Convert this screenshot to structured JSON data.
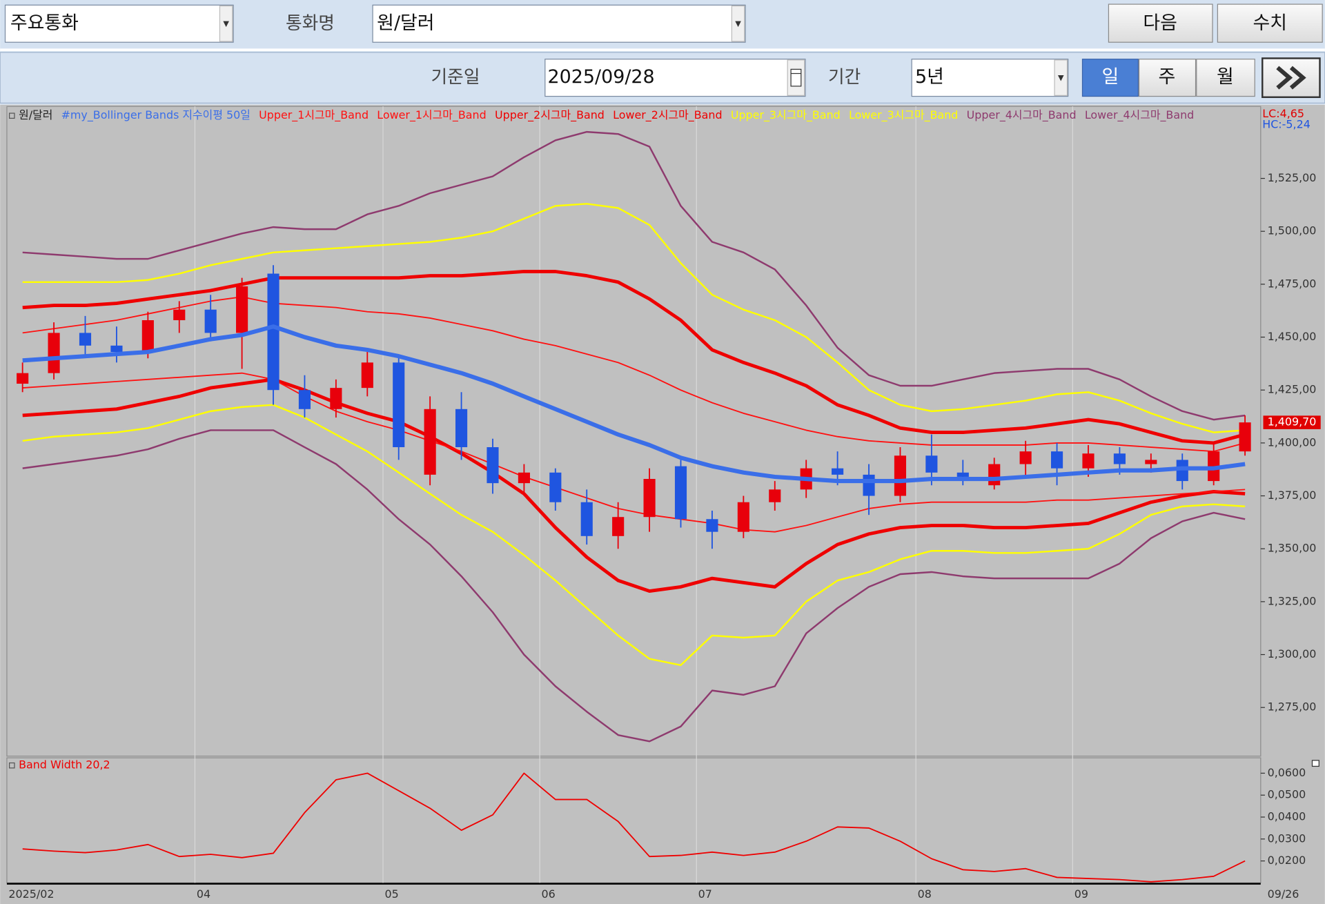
{
  "toolbar": {
    "currency_group": "주요통화",
    "currency_label": "통화명",
    "currency": "원/달러",
    "next_button": "다음",
    "value_button": "수치",
    "date_label": "기준일",
    "date": "2025/09/28",
    "period_label": "기간",
    "period": "5년",
    "day": "일",
    "week": "주",
    "month": "월"
  },
  "chart_data": {
    "type": "candlestick",
    "categories": [
      "2025/02",
      null,
      null,
      null,
      null,
      null,
      "04",
      null,
      null,
      null,
      null,
      null,
      "05",
      null,
      null,
      null,
      null,
      "06",
      null,
      null,
      null,
      null,
      "07",
      null,
      null,
      null,
      null,
      null,
      null,
      "08",
      null,
      null,
      null,
      null,
      "09",
      null,
      null,
      null,
      null,
      "09/26"
    ],
    "annotations": [
      "LC:4,65",
      "HC:-5,24"
    ],
    "last_label": {
      "value": 1409.7,
      "label": "1,409,70"
    },
    "up_color": "#e8000b",
    "down_color": "#1f55e0",
    "ohlc": {
      "name": "원/달러",
      "open": [
        1428,
        1433,
        1452,
        1446,
        1443,
        1458,
        1463,
        1452,
        1480,
        1425,
        1416,
        1426,
        1438,
        1385,
        1416,
        1398,
        1381,
        1386,
        1372,
        1356,
        1365,
        1389,
        1364,
        1358,
        1372,
        1378,
        1388,
        1385,
        1375,
        1394,
        1386,
        1380,
        1390,
        1396,
        1388,
        1395,
        1390,
        1392,
        1382,
        1396
      ],
      "high": [
        1438,
        1457,
        1460,
        1455,
        1462,
        1467,
        1470,
        1478,
        1484,
        1432,
        1430,
        1443,
        1441,
        1422,
        1424,
        1402,
        1390,
        1388,
        1378,
        1372,
        1388,
        1392,
        1368,
        1375,
        1382,
        1392,
        1396,
        1390,
        1398,
        1404,
        1392,
        1393,
        1401,
        1400,
        1399,
        1398,
        1395,
        1395,
        1400,
        1413
      ],
      "low": [
        1424,
        1430,
        1441,
        1438,
        1440,
        1452,
        1448,
        1435,
        1418,
        1412,
        1412,
        1422,
        1392,
        1380,
        1392,
        1376,
        1375,
        1368,
        1352,
        1350,
        1358,
        1360,
        1350,
        1355,
        1368,
        1374,
        1380,
        1366,
        1372,
        1380,
        1380,
        1378,
        1383,
        1380,
        1384,
        1385,
        1386,
        1378,
        1380,
        1394
      ],
      "close": [
        1433,
        1452,
        1446,
        1443,
        1458,
        1463,
        1452,
        1474,
        1425,
        1416,
        1426,
        1438,
        1398,
        1416,
        1398,
        1381,
        1386,
        1372,
        1356,
        1365,
        1383,
        1364,
        1358,
        1372,
        1378,
        1388,
        1385,
        1375,
        1394,
        1386,
        1384,
        1390,
        1396,
        1388,
        1395,
        1390,
        1392,
        1382,
        1396,
        1409.7
      ]
    },
    "series": [
      {
        "name": "#my_Bollinger Bands 지수이평 50일",
        "color": "#3a6ee8",
        "width": 5,
        "values": [
          1439,
          1440,
          1441,
          1442,
          1443,
          1446,
          1449,
          1451,
          1455,
          1450,
          1446,
          1444,
          1441,
          1437,
          1433,
          1428,
          1422,
          1416,
          1410,
          1404,
          1399,
          1393,
          1389,
          1386,
          1384,
          1383,
          1382,
          1382,
          1382,
          1383,
          1383,
          1383,
          1384,
          1385,
          1386,
          1387,
          1387,
          1388,
          1388,
          1390
        ]
      },
      {
        "name": "Upper_1시그마_Band",
        "color": "#ff1010",
        "width": 1.5,
        "values": [
          1452,
          1454,
          1456,
          1458,
          1461,
          1464,
          1467,
          1469,
          1466,
          1465,
          1464,
          1462,
          1461,
          1459,
          1456,
          1453,
          1449,
          1446,
          1442,
          1438,
          1432,
          1425,
          1419,
          1414,
          1410,
          1406,
          1403,
          1401,
          1400,
          1399,
          1399,
          1399,
          1399,
          1400,
          1400,
          1399,
          1398,
          1397,
          1396,
          1400
        ]
      },
      {
        "name": "Lower_1시그마_Band",
        "color": "#ff1010",
        "width": 1.5,
        "values": [
          1426,
          1427,
          1428,
          1429,
          1430,
          1431,
          1432,
          1433,
          1430,
          1422,
          1415,
          1410,
          1406,
          1401,
          1396,
          1390,
          1384,
          1379,
          1374,
          1369,
          1366,
          1364,
          1362,
          1359,
          1358,
          1361,
          1365,
          1369,
          1371,
          1372,
          1372,
          1372,
          1372,
          1373,
          1373,
          1374,
          1375,
          1376,
          1377,
          1378
        ]
      },
      {
        "name": "Upper_2시그마_Band",
        "color": "#ee0000",
        "width": 4,
        "values": [
          1464,
          1465,
          1465,
          1466,
          1468,
          1470,
          1472,
          1475,
          1478,
          1478,
          1478,
          1478,
          1478,
          1479,
          1479,
          1480,
          1481,
          1481,
          1479,
          1476,
          1468,
          1458,
          1444,
          1438,
          1433,
          1427,
          1418,
          1413,
          1407,
          1405,
          1405,
          1406,
          1407,
          1409,
          1411,
          1409,
          1405,
          1401,
          1400,
          1404
        ]
      },
      {
        "name": "Lower_2시그마_Band",
        "color": "#ee0000",
        "width": 4,
        "values": [
          1413,
          1414,
          1415,
          1416,
          1419,
          1422,
          1426,
          1428,
          1430,
          1425,
          1419,
          1414,
          1410,
          1403,
          1395,
          1386,
          1376,
          1360,
          1346,
          1335,
          1330,
          1332,
          1336,
          1334,
          1332,
          1343,
          1352,
          1357,
          1360,
          1361,
          1361,
          1360,
          1360,
          1361,
          1362,
          1367,
          1372,
          1375,
          1377,
          1376
        ]
      },
      {
        "name": "Upper_3시그마_Band",
        "color": "#ffff00",
        "width": 2,
        "values": [
          1476,
          1476,
          1476,
          1476,
          1477,
          1480,
          1484,
          1487,
          1490,
          1491,
          1492,
          1493,
          1494,
          1495,
          1497,
          1500,
          1506,
          1512,
          1513,
          1511,
          1503,
          1485,
          1470,
          1463,
          1458,
          1450,
          1438,
          1425,
          1418,
          1415,
          1416,
          1418,
          1420,
          1423,
          1424,
          1420,
          1414,
          1409,
          1405,
          1406
        ]
      },
      {
        "name": "Lower_3시그마_Band",
        "color": "#ffff00",
        "width": 2,
        "values": [
          1401,
          1403,
          1404,
          1405,
          1407,
          1411,
          1415,
          1417,
          1418,
          1412,
          1404,
          1396,
          1386,
          1376,
          1366,
          1358,
          1347,
          1335,
          1322,
          1309,
          1298,
          1295,
          1309,
          1308,
          1309,
          1325,
          1335,
          1339,
          1345,
          1349,
          1349,
          1348,
          1348,
          1349,
          1350,
          1357,
          1366,
          1370,
          1371,
          1370
        ]
      },
      {
        "name": "Upper_4시그마_Band",
        "color": "#8e3a6e",
        "width": 2,
        "values": [
          1490,
          1489,
          1488,
          1487,
          1487,
          1491,
          1495,
          1499,
          1502,
          1501,
          1501,
          1508,
          1512,
          1518,
          1522,
          1526,
          1535,
          1543,
          1547,
          1546,
          1540,
          1512,
          1495,
          1490,
          1482,
          1465,
          1445,
          1432,
          1427,
          1427,
          1430,
          1433,
          1434,
          1435,
          1435,
          1430,
          1422,
          1415,
          1411,
          1413
        ]
      },
      {
        "name": "Lower_4시그마_Band",
        "color": "#8e3a6e",
        "width": 2,
        "values": [
          1388,
          1390,
          1392,
          1394,
          1397,
          1402,
          1406,
          1406,
          1406,
          1398,
          1390,
          1378,
          1364,
          1352,
          1337,
          1320,
          1300,
          1285,
          1273,
          1262,
          1259,
          1266,
          1283,
          1281,
          1285,
          1310,
          1322,
          1332,
          1338,
          1339,
          1337,
          1336,
          1336,
          1336,
          1336,
          1343,
          1355,
          1363,
          1367,
          1364
        ]
      },
      {
        "name": "Band Width 20,2",
        "color": "#ee0000",
        "width": 1.5,
        "axis": "y2",
        "values": [
          0.0255,
          0.0245,
          0.0238,
          0.025,
          0.0275,
          0.022,
          0.023,
          0.0215,
          0.0235,
          0.042,
          0.057,
          0.06,
          0.052,
          0.044,
          0.034,
          0.041,
          0.06,
          0.048,
          0.048,
          0.038,
          0.022,
          0.0225,
          0.024,
          0.0225,
          0.024,
          0.029,
          0.0355,
          0.035,
          0.029,
          0.021,
          0.016,
          0.0152,
          0.0165,
          0.0125,
          0.012,
          0.0115,
          0.0105,
          0.0115,
          0.013,
          0.02
        ]
      }
    ],
    "ylim": [
      1252,
      1559
    ],
    "yticks": [
      {
        "value": 1275,
        "label": "1,275,00"
      },
      {
        "value": 1300,
        "label": "1,300,00"
      },
      {
        "value": 1325,
        "label": "1,325,00"
      },
      {
        "value": 1350,
        "label": "1,350,00"
      },
      {
        "value": 1375,
        "label": "1,375,00"
      },
      {
        "value": 1400,
        "label": "1,400,00"
      },
      {
        "value": 1425,
        "label": "1,425,00"
      },
      {
        "value": 1450,
        "label": "1,450,00"
      },
      {
        "value": 1475,
        "label": "1,475,00"
      },
      {
        "value": 1500,
        "label": "1,500,00"
      },
      {
        "value": 1525,
        "label": "1,525,00"
      }
    ],
    "y2lim": [
      0.01,
      0.067
    ],
    "y2ticks": [
      {
        "value": 0.02,
        "label": "0,0200"
      },
      {
        "value": 0.03,
        "label": "0,0300"
      },
      {
        "value": 0.04,
        "label": "0,0400"
      },
      {
        "value": 0.05,
        "label": "0,0500"
      },
      {
        "value": 0.06,
        "label": "0,0600"
      }
    ]
  }
}
